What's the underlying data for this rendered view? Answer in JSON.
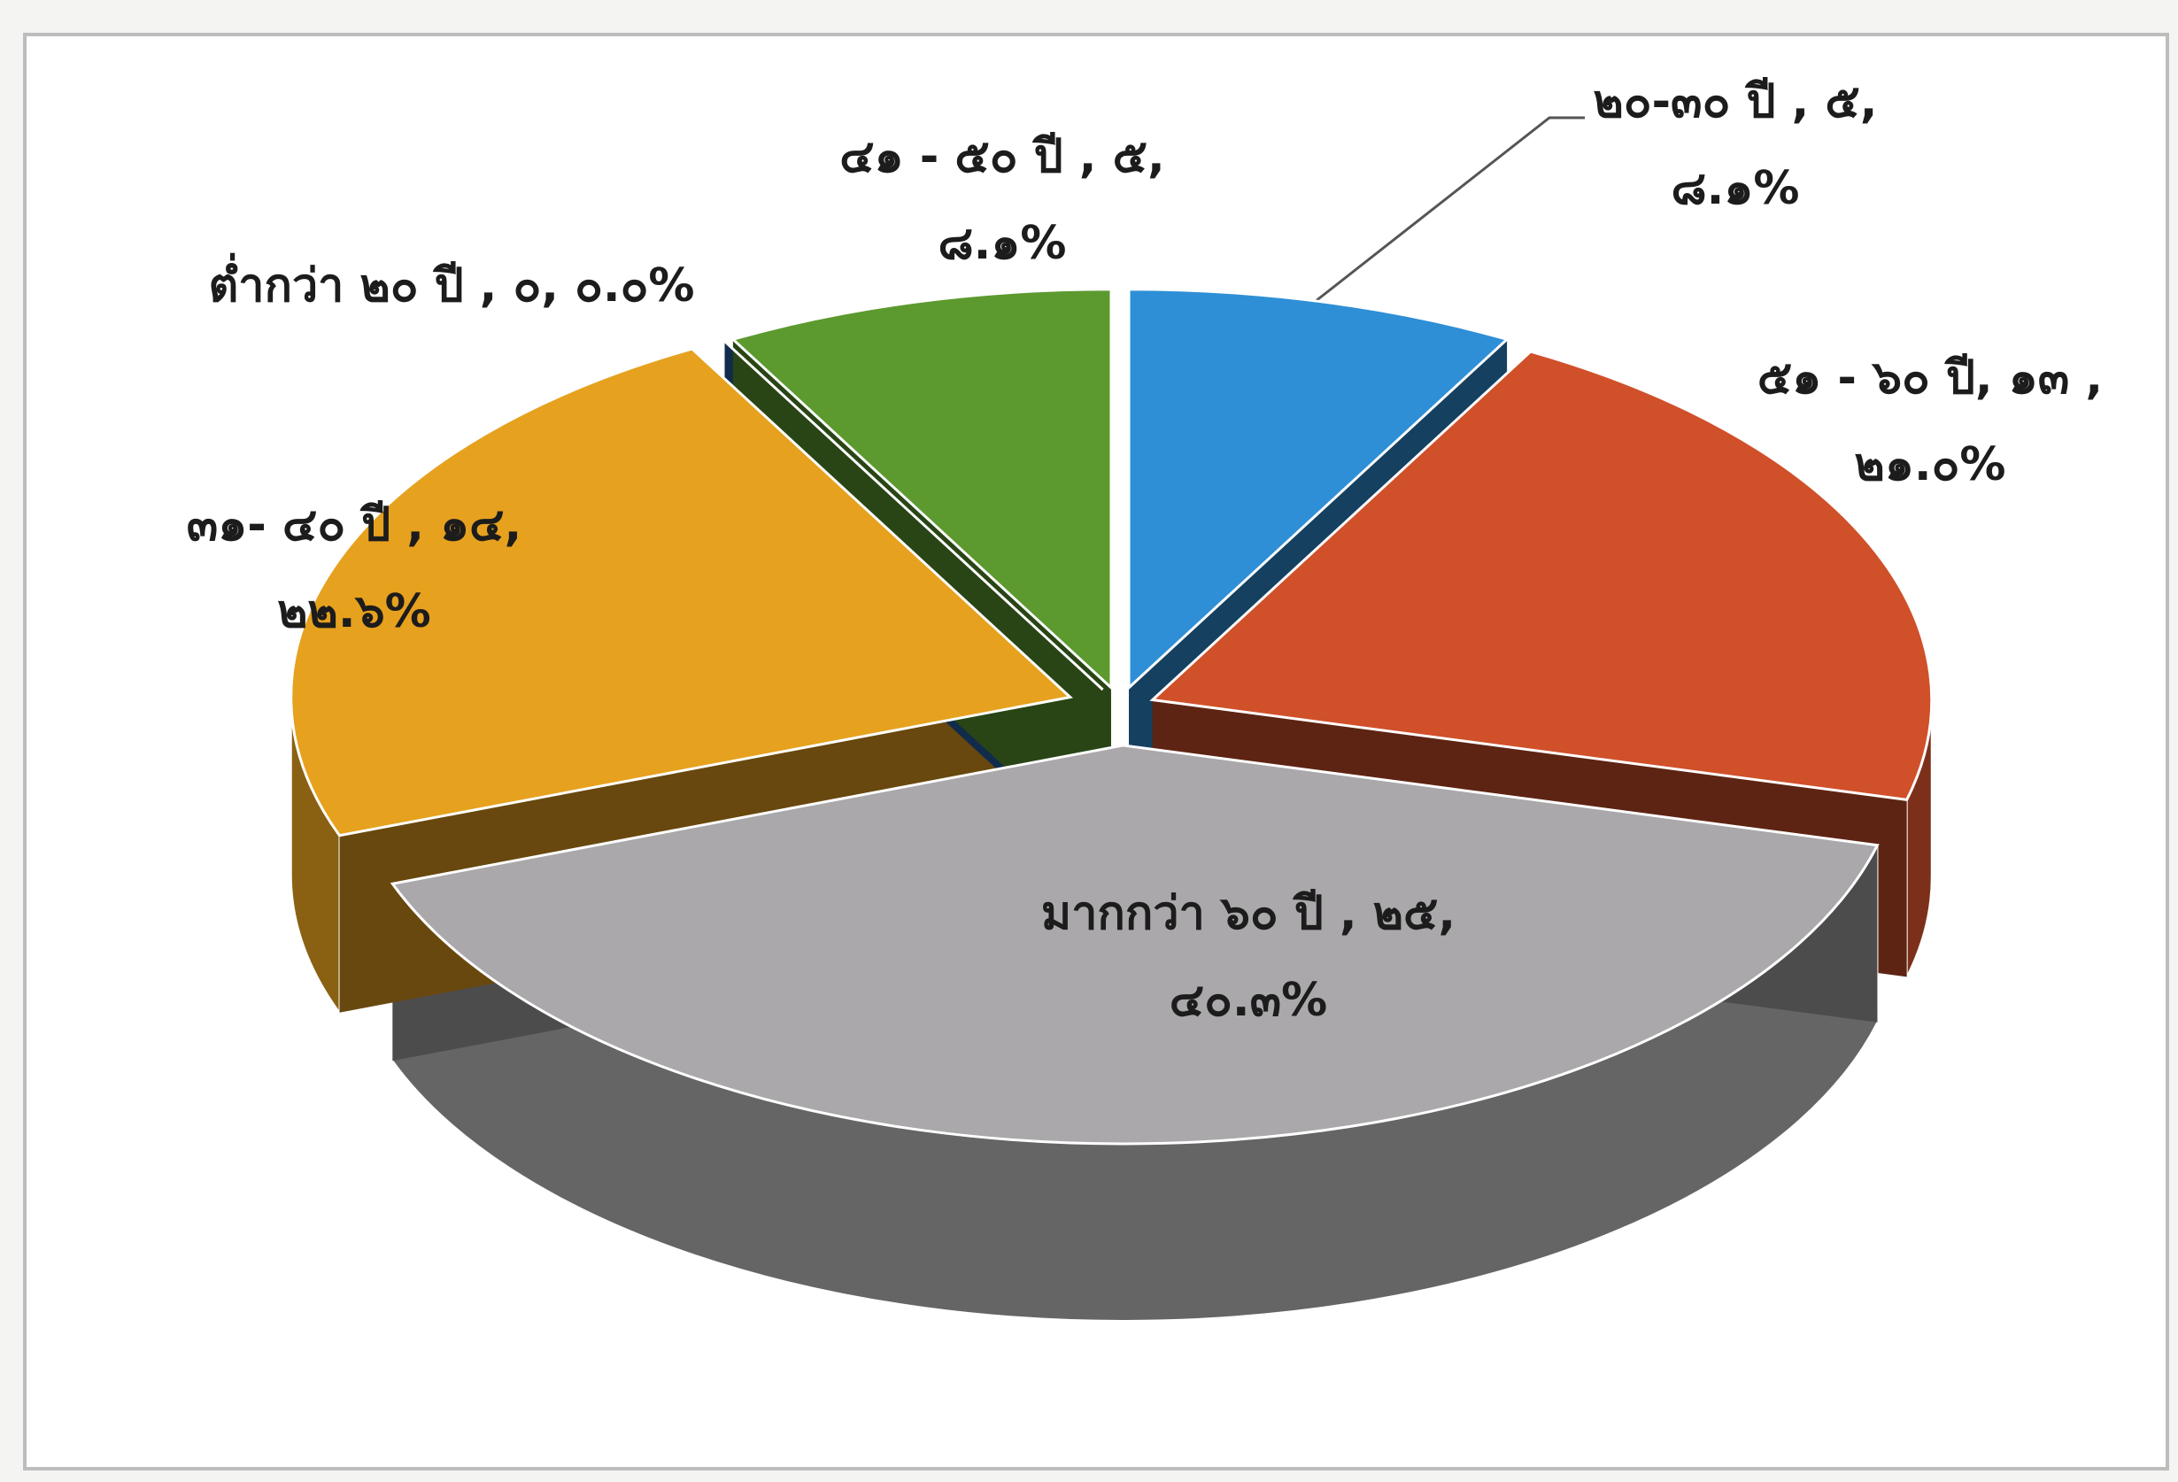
{
  "chart_data": {
    "type": "pie3d",
    "categories": [
      "๒๐-๓๐ ปี",
      "๕๑ - ๖๐ ปี",
      "มากกว่า ๖๐ ปี",
      "๓๑- ๔๐ ปี",
      "ต่ำกว่า ๒๐ ปี",
      "๔๑ - ๕๐ ปี"
    ],
    "values": [
      5,
      13,
      25,
      14,
      0,
      5
    ],
    "value_labels": [
      [
        "๒๐-๓๐ ปี , ๕,",
        "๘.๑%"
      ],
      [
        "๕๑ - ๖๐ ปี, ๑๓ ,",
        "๒๑.๐%"
      ],
      [
        "มากกว่า ๖๐ ปี , ๒๕,",
        "๔๐.๓%"
      ],
      [
        "๓๑- ๔๐ ปี , ๑๔,",
        "๒๒.๖%"
      ],
      [
        "ต่ำกว่า ๒๐ ปี , ๐, ๐.๐%"
      ],
      [
        "๔๑ - ๕๐ ปี , ๕,",
        "๘.๑%"
      ]
    ],
    "colors": [
      "#2e8fd6",
      "#d0502a",
      "#aaa8aa",
      "#e6a11e",
      "#2562a6",
      "#5c9a2f"
    ]
  }
}
